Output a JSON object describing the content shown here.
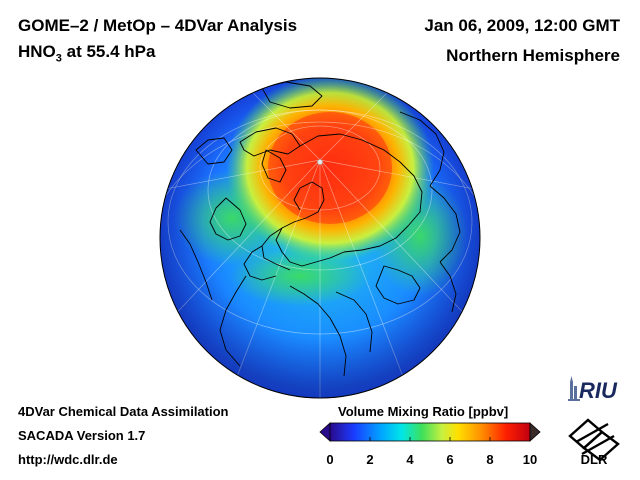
{
  "header": {
    "title_left": "GOME–2 / MetOp – 4DVar Analysis",
    "species": "HNO",
    "species_sub": "3",
    "level": " at 55.4 hPa",
    "title_right": "Jan 06, 2009, 12:00 GMT",
    "region": "Northern Hemisphere"
  },
  "footer": {
    "line1": "4DVar Chemical Data Assimilation",
    "line2": "SACADA Version 1.7",
    "line3": "http://wdc.dlr.de"
  },
  "colorbar": {
    "title": "Volume Mixing Ratio [ppbv]",
    "ticks": [
      "0",
      "2",
      "4",
      "6",
      "8",
      "10"
    ],
    "range": [
      0,
      10
    ],
    "stops": [
      "#2a0a8c",
      "#1a3cff",
      "#00a8ff",
      "#00e6e6",
      "#3ee05a",
      "#c8f040",
      "#ffe000",
      "#ff8c00",
      "#ff2000",
      "#c00010"
    ]
  },
  "logos": {
    "riu": "RIU",
    "dlr": "DLR"
  },
  "colors": {
    "low": "#1a56ff",
    "mid": "#2ee07a",
    "high": "#ff2a10",
    "border": "#000000"
  }
}
